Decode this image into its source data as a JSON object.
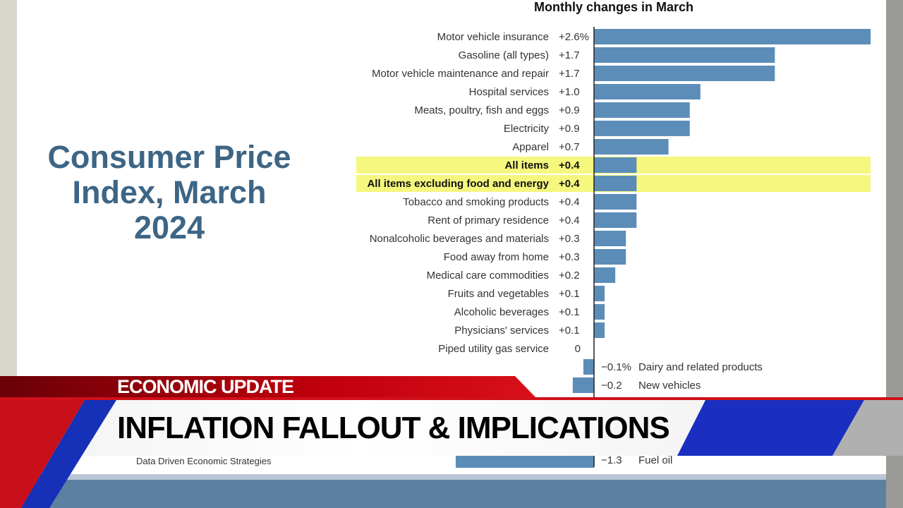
{
  "slide": {
    "title": "Consumer Price Index, March 2024",
    "source": "Data Driven Economic Strategies"
  },
  "lower_third": {
    "tag": "ECONOMIC UPDATE",
    "headline": "INFLATION FALLOUT & IMPLICATIONS"
  },
  "chart_data": {
    "type": "bar",
    "orientation": "horizontal",
    "title": "Monthly changes in March",
    "unit": "%",
    "highlight_color": "#f5f77e",
    "bar_color": "#5b8db8",
    "categories": [
      "Motor vehicle insurance",
      "Gasoline (all types)",
      "Motor vehicle maintenance and repair",
      "Hospital services",
      "Meats, poultry, fish and eggs",
      "Electricity",
      "Apparel",
      "All items",
      "All items excluding food and energy",
      "Tobacco and smoking products",
      "Rent of primary residence",
      "Nonalcoholic beverages and materials",
      "Food away from home",
      "Medical care commodities",
      "Fruits and vegetables",
      "Alcoholic beverages",
      "Physicians' services",
      "Piped utility gas service",
      "Dairy and related products",
      "New vehicles",
      "Fuel oil"
    ],
    "values": [
      2.6,
      1.7,
      1.7,
      1.0,
      0.9,
      0.9,
      0.7,
      0.4,
      0.4,
      0.4,
      0.4,
      0.3,
      0.3,
      0.2,
      0.1,
      0.1,
      0.1,
      0,
      -0.1,
      -0.2,
      -1.3
    ],
    "value_labels": [
      "+2.6%",
      "+1.7",
      "+1.7",
      "+1.0",
      "+0.9",
      "+0.9",
      "+0.7",
      "+0.4",
      "+0.4",
      "+0.4",
      "+0.4",
      "+0.3",
      "+0.3",
      "+0.2",
      "+0.1",
      "+0.1",
      "+0.1",
      "0",
      "−0.1%",
      "−0.2",
      "−1.3"
    ],
    "highlighted": [
      "All items",
      "All items excluding food and energy"
    ]
  }
}
